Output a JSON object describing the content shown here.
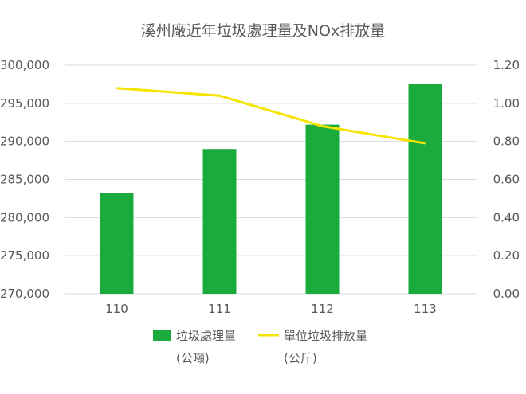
{
  "chart_data": {
    "type": "bar+line",
    "title": "溪州廠近年垃圾處理量及NOx排放量",
    "categories": [
      "110",
      "111",
      "112",
      "113"
    ],
    "series": [
      {
        "name": "垃圾處理量",
        "unit": "(公噸)",
        "type": "bar",
        "axis": "left",
        "color": "#1aab3c",
        "values": [
          283200,
          289000,
          292200,
          297500
        ]
      },
      {
        "name": "單位垃圾排放量",
        "unit": "(公斤)",
        "type": "line",
        "axis": "right",
        "color": "#f5e400",
        "values": [
          1.08,
          1.04,
          0.88,
          0.79
        ]
      }
    ],
    "y_left": {
      "min": 270000,
      "max": 300000,
      "ticks": [
        "270,000",
        "275,000",
        "280,000",
        "285,000",
        "290,000",
        "295,000",
        "300,000"
      ]
    },
    "y_right": {
      "min": 0,
      "max": 1.2,
      "ticks": [
        "0.00",
        "0.20",
        "0.40",
        "0.60",
        "0.80",
        "1.00",
        "1.20"
      ]
    },
    "grid": true,
    "legend_position": "bottom"
  }
}
